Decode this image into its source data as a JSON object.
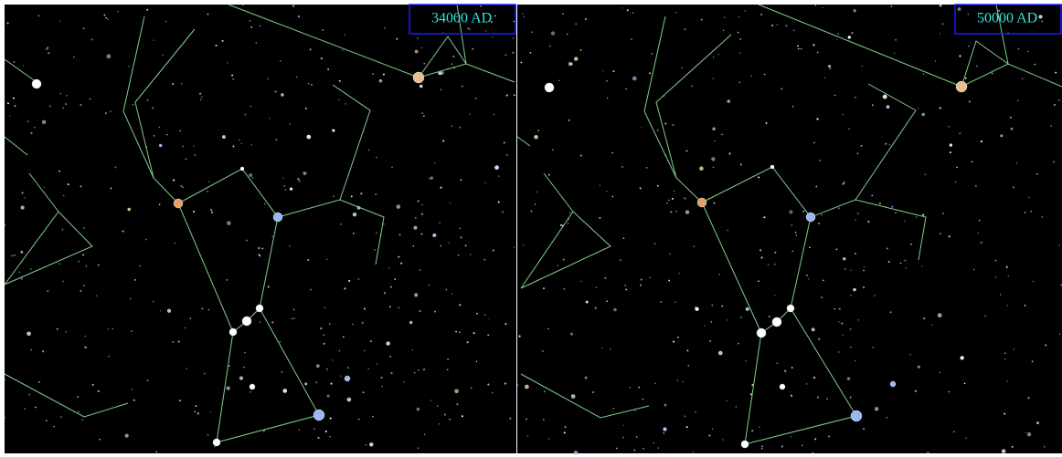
{
  "panels": [
    {
      "label": "34000 AD"
    },
    {
      "label": "50000 AD"
    }
  ]
}
